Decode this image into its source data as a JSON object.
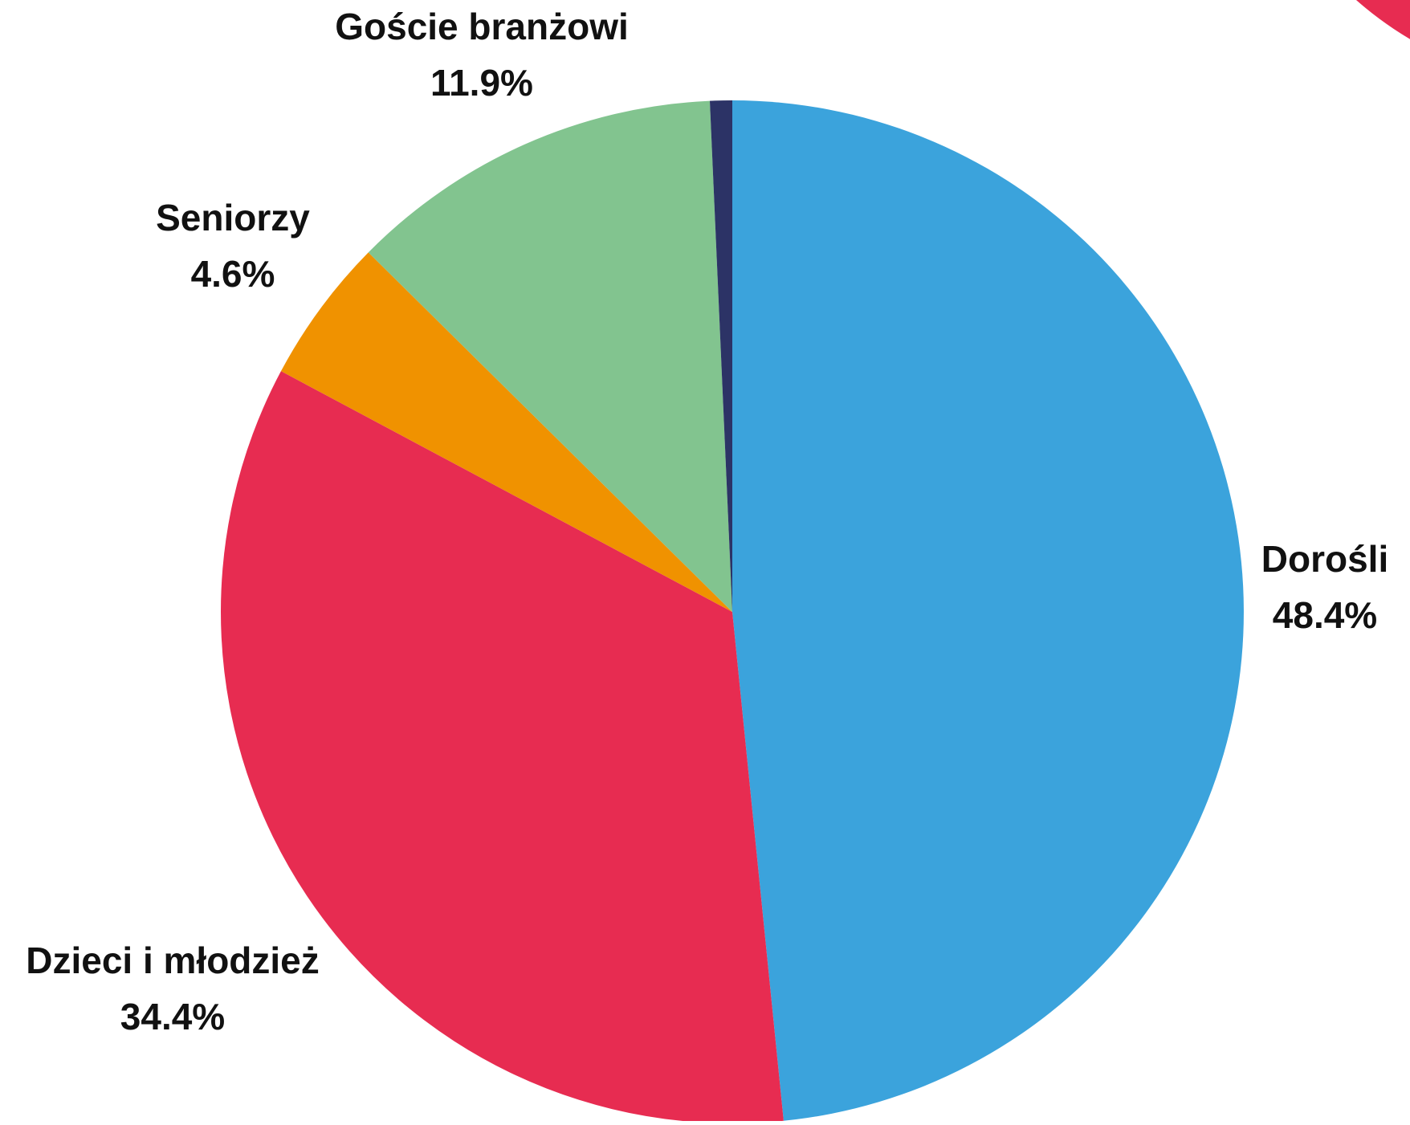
{
  "chart_data": {
    "type": "pie",
    "title": "",
    "slices": [
      {
        "label": "Dorośli",
        "percent_label": "48.4%",
        "value": 48.4,
        "color": "#3BA3DC"
      },
      {
        "label": "Dzieci i młodzież",
        "percent_label": "34.4%",
        "value": 34.4,
        "color": "#E72C51"
      },
      {
        "label": "Seniorzy",
        "percent_label": "4.6%",
        "value": 4.6,
        "color": "#F09200"
      },
      {
        "label": "Goście branżowi",
        "percent_label": "11.9%",
        "value": 11.9,
        "color": "#82C48F"
      },
      {
        "label": "",
        "percent_label": "",
        "value": 0.7,
        "color": "#2C3366"
      }
    ],
    "start_angle_deg": 0,
    "direction": "clockwise",
    "labels_outside": true
  },
  "decor": {
    "corner_blob_color": "#E72C51"
  }
}
